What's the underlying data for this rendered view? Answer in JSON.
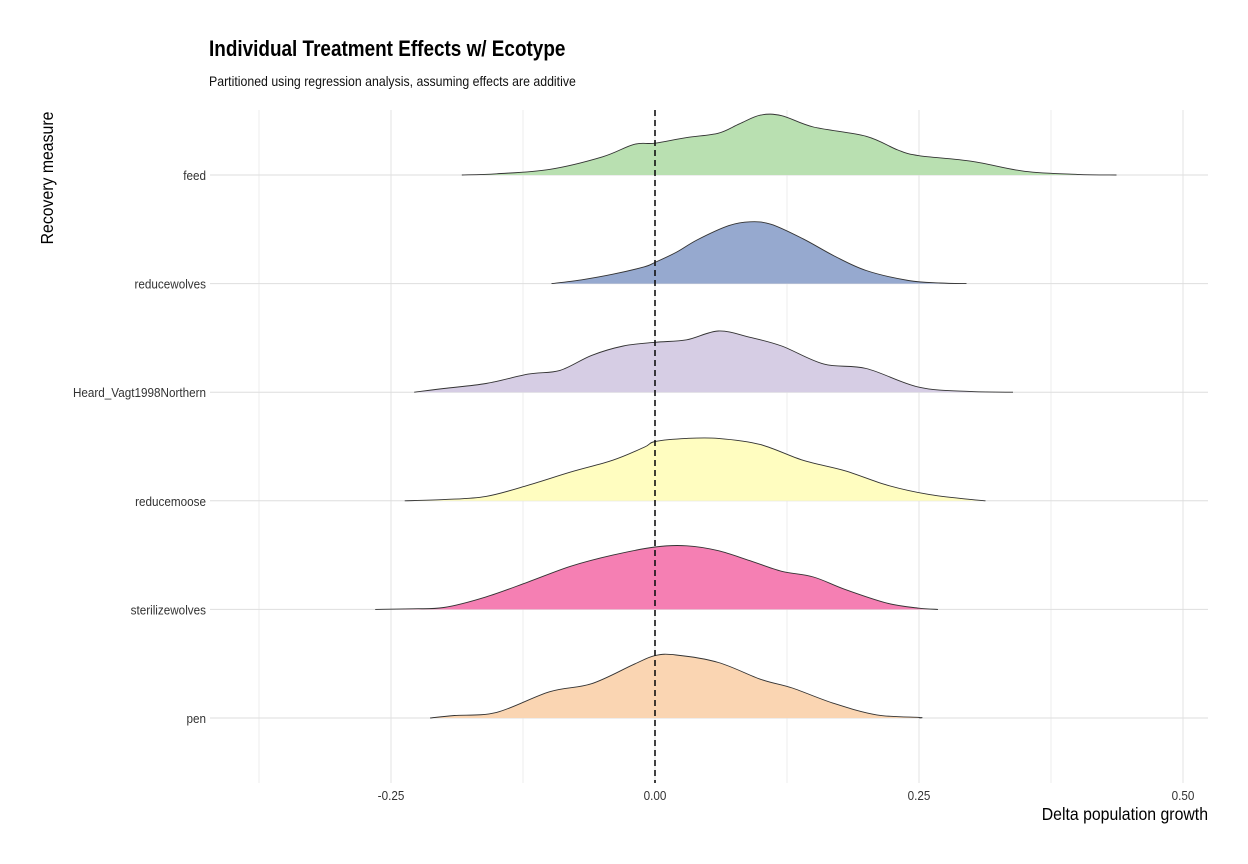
{
  "chart_data": {
    "type": "area",
    "title": "Individual Treatment Effects w/ Ecotype",
    "subtitle": "Partitioned using regression analysis, assuming effects are additive",
    "xlabel": "Delta population growth",
    "ylabel": "Recovery measure",
    "xlim": [
      -0.375,
      0.525
    ],
    "x_ticks": [
      "-0.25",
      "0.00",
      "0.25",
      "0.50"
    ],
    "x_tick_values": [
      -0.25,
      0.0,
      0.25,
      0.5
    ],
    "reference_line": {
      "x": 0.0,
      "style": "dashed"
    },
    "grid": true,
    "series": [
      {
        "name": "feed",
        "color": "#b9e0b1",
        "points": [
          [
            -0.183,
            0
          ],
          [
            -0.15,
            0.02
          ],
          [
            -0.1,
            0.09
          ],
          [
            -0.05,
            0.29
          ],
          [
            -0.02,
            0.49
          ],
          [
            0.0,
            0.51
          ],
          [
            0.03,
            0.6
          ],
          [
            0.06,
            0.67
          ],
          [
            0.08,
            0.82
          ],
          [
            0.1,
            0.96
          ],
          [
            0.12,
            0.95
          ],
          [
            0.15,
            0.77
          ],
          [
            0.2,
            0.62
          ],
          [
            0.23,
            0.4
          ],
          [
            0.25,
            0.31
          ],
          [
            0.3,
            0.22
          ],
          [
            0.35,
            0.06
          ],
          [
            0.4,
            0.01
          ],
          [
            0.437,
            0
          ]
        ]
      },
      {
        "name": "reducewolves",
        "color": "#96a9cf",
        "points": [
          [
            -0.098,
            0
          ],
          [
            -0.07,
            0.06
          ],
          [
            -0.04,
            0.15
          ],
          [
            -0.01,
            0.27
          ],
          [
            0.0,
            0.34
          ],
          [
            0.02,
            0.5
          ],
          [
            0.04,
            0.7
          ],
          [
            0.07,
            0.93
          ],
          [
            0.09,
            0.99
          ],
          [
            0.11,
            0.95
          ],
          [
            0.14,
            0.72
          ],
          [
            0.17,
            0.44
          ],
          [
            0.2,
            0.21
          ],
          [
            0.24,
            0.05
          ],
          [
            0.27,
            0.01
          ],
          [
            0.295,
            0
          ]
        ]
      },
      {
        "name": "Heard_Vagt1998Northern",
        "color": "#d6cde4",
        "points": [
          [
            -0.228,
            0
          ],
          [
            -0.2,
            0.06
          ],
          [
            -0.16,
            0.14
          ],
          [
            -0.12,
            0.29
          ],
          [
            -0.09,
            0.35
          ],
          [
            -0.06,
            0.59
          ],
          [
            -0.03,
            0.74
          ],
          [
            0.0,
            0.8
          ],
          [
            0.03,
            0.84
          ],
          [
            0.06,
            0.98
          ],
          [
            0.09,
            0.88
          ],
          [
            0.12,
            0.74
          ],
          [
            0.16,
            0.45
          ],
          [
            0.2,
            0.38
          ],
          [
            0.25,
            0.08
          ],
          [
            0.3,
            0.01
          ],
          [
            0.339,
            0
          ]
        ]
      },
      {
        "name": "reducemoose",
        "color": "#fffdc0",
        "points": [
          [
            -0.237,
            0
          ],
          [
            -0.2,
            0.02
          ],
          [
            -0.16,
            0.07
          ],
          [
            -0.12,
            0.25
          ],
          [
            -0.08,
            0.46
          ],
          [
            -0.04,
            0.65
          ],
          [
            -0.01,
            0.86
          ],
          [
            0.0,
            0.95
          ],
          [
            0.03,
            1.0
          ],
          [
            0.06,
            1.0
          ],
          [
            0.1,
            0.9
          ],
          [
            0.14,
            0.65
          ],
          [
            0.18,
            0.48
          ],
          [
            0.22,
            0.25
          ],
          [
            0.26,
            0.1
          ],
          [
            0.3,
            0.02
          ],
          [
            0.313,
            0
          ]
        ]
      },
      {
        "name": "sterilizewolves",
        "color": "#f57fb3",
        "points": [
          [
            -0.265,
            0
          ],
          [
            -0.23,
            0.01
          ],
          [
            -0.2,
            0.03
          ],
          [
            -0.16,
            0.2
          ],
          [
            -0.12,
            0.44
          ],
          [
            -0.08,
            0.69
          ],
          [
            -0.04,
            0.87
          ],
          [
            0.0,
            1.0
          ],
          [
            0.03,
            1.02
          ],
          [
            0.06,
            0.94
          ],
          [
            0.09,
            0.78
          ],
          [
            0.12,
            0.61
          ],
          [
            0.15,
            0.52
          ],
          [
            0.18,
            0.32
          ],
          [
            0.22,
            0.1
          ],
          [
            0.25,
            0.02
          ],
          [
            0.268,
            0
          ]
        ]
      },
      {
        "name": "pen",
        "color": "#fad5b2",
        "points": [
          [
            -0.213,
            0
          ],
          [
            -0.19,
            0.04
          ],
          [
            -0.15,
            0.09
          ],
          [
            -0.1,
            0.42
          ],
          [
            -0.06,
            0.55
          ],
          [
            -0.02,
            0.86
          ],
          [
            0.0,
            1.0
          ],
          [
            0.02,
            1.01
          ],
          [
            0.06,
            0.89
          ],
          [
            0.1,
            0.62
          ],
          [
            0.13,
            0.48
          ],
          [
            0.17,
            0.23
          ],
          [
            0.21,
            0.05
          ],
          [
            0.25,
            0.01
          ],
          [
            0.25,
            0
          ]
        ]
      }
    ]
  }
}
